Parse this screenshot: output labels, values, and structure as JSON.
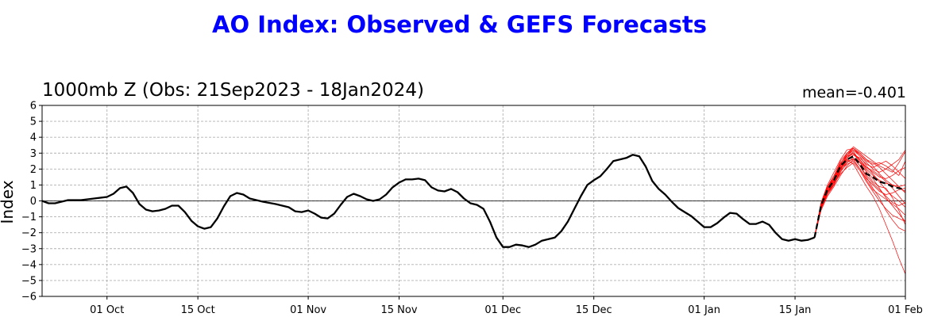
{
  "chart_data": {
    "type": "line",
    "title": "AO Index: Observed & GEFS Forecasts",
    "subtitle": "1000mb Z (Obs: 21Sep2023 - 18Jan2024)",
    "mean_label": "mean=-0.401",
    "xlabel": "",
    "ylabel": "Index",
    "x_range": [
      "2023-09-21",
      "2024-02-01"
    ],
    "ylim": [
      -6,
      6
    ],
    "x_ticks": [
      {
        "date": "2023-10-01",
        "label": "01 Oct"
      },
      {
        "date": "2023-10-15",
        "label": "15 Oct"
      },
      {
        "date": "2023-11-01",
        "label": "01 Nov"
      },
      {
        "date": "2023-11-15",
        "label": "15 Nov"
      },
      {
        "date": "2023-12-01",
        "label": "01 Dec"
      },
      {
        "date": "2023-12-15",
        "label": "15 Dec"
      },
      {
        "date": "2024-01-01",
        "label": "01 Jan"
      },
      {
        "date": "2024-01-15",
        "label": "15 Jan"
      },
      {
        "date": "2024-02-01",
        "label": "01 Feb"
      }
    ],
    "y_ticks": [
      -6,
      -5,
      -4,
      -3,
      -2,
      -1,
      0,
      1,
      2,
      3,
      4,
      5,
      6
    ],
    "grid": true,
    "zero_line": true,
    "colors": {
      "observed": "#000000",
      "ensemble": "#ff0000",
      "ensemble_mean": "#000000",
      "title": "#0000ff"
    },
    "series": [
      {
        "role": "observed",
        "style": "solid",
        "x": [
          "2023-09-21",
          "2023-09-22",
          "2023-09-23",
          "2023-09-25",
          "2023-09-27",
          "2023-09-29",
          "2023-10-01",
          "2023-10-02",
          "2023-10-03",
          "2023-10-04",
          "2023-10-05",
          "2023-10-06",
          "2023-10-07",
          "2023-10-08",
          "2023-10-09",
          "2023-10-10",
          "2023-10-11",
          "2023-10-12",
          "2023-10-13",
          "2023-10-14",
          "2023-10-15",
          "2023-10-16",
          "2023-10-17",
          "2023-10-18",
          "2023-10-19",
          "2023-10-20",
          "2023-10-21",
          "2023-10-22",
          "2023-10-23",
          "2023-10-25",
          "2023-10-27",
          "2023-10-28",
          "2023-10-29",
          "2023-10-30",
          "2023-10-31",
          "2023-11-01",
          "2023-11-02",
          "2023-11-03",
          "2023-11-04",
          "2023-11-05",
          "2023-11-06",
          "2023-11-07",
          "2023-11-08",
          "2023-11-09",
          "2023-11-10",
          "2023-11-11",
          "2023-11-12",
          "2023-11-13",
          "2023-11-14",
          "2023-11-15",
          "2023-11-16",
          "2023-11-17",
          "2023-11-18",
          "2023-11-19",
          "2023-11-20",
          "2023-11-21",
          "2023-11-22",
          "2023-11-23",
          "2023-11-24",
          "2023-11-25",
          "2023-11-26",
          "2023-11-27",
          "2023-11-28",
          "2023-11-29",
          "2023-11-30",
          "2023-12-01",
          "2023-12-02",
          "2023-12-03",
          "2023-12-04",
          "2023-12-05",
          "2023-12-06",
          "2023-12-07",
          "2023-12-08",
          "2023-12-09",
          "2023-12-10",
          "2023-12-11",
          "2023-12-12",
          "2023-12-13",
          "2023-12-14",
          "2023-12-15",
          "2023-12-16",
          "2023-12-17",
          "2023-12-18",
          "2023-12-19",
          "2023-12-20",
          "2023-12-21",
          "2023-12-22",
          "2023-12-23",
          "2023-12-24",
          "2023-12-25",
          "2023-12-26",
          "2023-12-27",
          "2023-12-28",
          "2023-12-29",
          "2023-12-30",
          "2023-12-31",
          "2024-01-01",
          "2024-01-02",
          "2024-01-03",
          "2024-01-04",
          "2024-01-05",
          "2024-01-06",
          "2024-01-07",
          "2024-01-08",
          "2024-01-09",
          "2024-01-10",
          "2024-01-11",
          "2024-01-12",
          "2024-01-13",
          "2024-01-14",
          "2024-01-15",
          "2024-01-16",
          "2024-01-17",
          "2024-01-18"
        ],
        "y": [
          0.0,
          -0.15,
          -0.15,
          0.05,
          0.05,
          0.15,
          0.25,
          0.45,
          0.8,
          0.9,
          0.5,
          -0.2,
          -0.55,
          -0.65,
          -0.6,
          -0.5,
          -0.3,
          -0.3,
          -0.7,
          -1.25,
          -1.6,
          -1.75,
          -1.65,
          -1.1,
          -0.35,
          0.3,
          0.5,
          0.4,
          0.15,
          -0.05,
          -0.2,
          -0.3,
          -0.4,
          -0.65,
          -0.7,
          -0.6,
          -0.8,
          -1.05,
          -1.1,
          -0.8,
          -0.25,
          0.25,
          0.45,
          0.3,
          0.1,
          0.0,
          0.1,
          0.4,
          0.85,
          1.15,
          1.35,
          1.35,
          1.4,
          1.3,
          0.85,
          0.65,
          0.6,
          0.75,
          0.55,
          0.15,
          -0.15,
          -0.25,
          -0.5,
          -1.3,
          -2.3,
          -2.9,
          -2.9,
          -2.75,
          -2.8,
          -2.9,
          -2.75,
          -2.5,
          -2.4,
          -2.3,
          -1.9,
          -1.3,
          -0.5,
          0.3,
          1.0,
          1.3,
          1.55,
          2.0,
          2.5,
          2.6,
          2.7,
          2.9,
          2.8,
          2.15,
          1.25,
          0.75,
          0.4,
          -0.05,
          -0.45,
          -0.7,
          -0.95,
          -1.3,
          -1.65,
          -1.65,
          -1.4,
          -1.05,
          -0.75,
          -0.8,
          -1.15,
          -1.45,
          -1.45,
          -1.3,
          -1.5,
          -2.0,
          -2.4,
          -2.5,
          -2.4,
          -2.5,
          -2.45,
          -2.3
        ]
      },
      {
        "role": "ensemble_mean",
        "style": "dashed",
        "x": [
          "2024-01-18",
          "2024-01-19",
          "2024-01-20",
          "2024-01-21",
          "2024-01-22",
          "2024-01-23",
          "2024-01-24",
          "2024-01-25",
          "2024-01-26",
          "2024-01-27",
          "2024-01-28",
          "2024-01-29",
          "2024-01-30",
          "2024-01-31",
          "2024-02-01"
        ],
        "y": [
          -2.3,
          -0.3,
          0.7,
          1.3,
          2.2,
          2.6,
          2.8,
          2.3,
          1.7,
          1.5,
          1.2,
          1.1,
          0.9,
          0.8,
          0.7
        ]
      }
    ],
    "ensemble_members": [
      [
        -2.3,
        -0.4,
        0.6,
        1.2,
        2.0,
        2.9,
        3.3,
        3.0,
        2.6,
        2.2,
        1.7,
        1.3,
        1.0,
        0.8,
        0.6
      ],
      [
        -2.3,
        -0.2,
        0.9,
        1.6,
        2.5,
        3.0,
        3.4,
        3.1,
        2.8,
        2.5,
        2.2,
        2.0,
        1.8,
        2.4,
        3.1
      ],
      [
        -2.3,
        -0.5,
        0.4,
        1.0,
        1.8,
        2.4,
        2.7,
        2.2,
        1.5,
        0.8,
        0.2,
        -0.6,
        -1.2,
        -1.7,
        -1.9
      ],
      [
        -2.3,
        -0.3,
        0.7,
        1.3,
        2.3,
        2.6,
        2.3,
        1.6,
        0.9,
        0.3,
        -0.5,
        -1.5,
        -2.5,
        -3.6,
        -4.6
      ],
      [
        -2.3,
        -0.1,
        1.0,
        1.8,
        2.6,
        3.2,
        3.3,
        2.9,
        2.4,
        2.0,
        1.8,
        2.0,
        2.3,
        2.6,
        3.2
      ],
      [
        -2.3,
        -0.4,
        0.5,
        1.1,
        1.9,
        2.3,
        2.5,
        2.0,
        1.3,
        0.7,
        0.4,
        0.1,
        -0.2,
        -0.5,
        -0.9
      ],
      [
        -2.3,
        -0.2,
        0.8,
        1.5,
        2.4,
        2.8,
        3.0,
        2.6,
        2.0,
        1.6,
        1.3,
        1.1,
        1.0,
        0.9,
        1.0
      ],
      [
        -2.3,
        -0.6,
        0.3,
        0.9,
        1.6,
        2.2,
        2.6,
        2.4,
        2.1,
        1.9,
        1.6,
        1.2,
        0.8,
        0.3,
        -0.2
      ],
      [
        -2.3,
        -0.3,
        0.6,
        1.2,
        2.0,
        2.5,
        2.9,
        2.7,
        2.3,
        2.1,
        2.3,
        2.5,
        2.2,
        1.8,
        1.4
      ],
      [
        -2.3,
        -0.3,
        0.7,
        1.4,
        2.2,
        2.7,
        3.1,
        2.5,
        1.9,
        1.4,
        0.8,
        0.2,
        -0.3,
        -0.8,
        -1.3
      ],
      [
        -2.3,
        -0.2,
        0.9,
        1.5,
        2.3,
        2.9,
        3.2,
        2.8,
        2.2,
        1.7,
        1.2,
        0.7,
        0.3,
        0.0,
        -0.4
      ],
      [
        -2.3,
        -0.4,
        0.5,
        1.1,
        1.7,
        2.1,
        2.4,
        1.9,
        1.2,
        0.6,
        0.0,
        -0.5,
        -0.9,
        -1.1,
        -1.3
      ],
      [
        -2.3,
        -0.5,
        0.5,
        1.0,
        1.9,
        2.6,
        2.9,
        2.6,
        2.1,
        1.8,
        1.5,
        1.4,
        1.6,
        1.9,
        2.1
      ],
      [
        -2.3,
        -0.2,
        0.8,
        1.4,
        2.3,
        3.0,
        3.3,
        3.0,
        2.6,
        2.4,
        2.1,
        1.7,
        1.3,
        0.9,
        0.5
      ],
      [
        -2.3,
        -0.3,
        0.6,
        1.3,
        2.1,
        2.5,
        2.6,
        2.0,
        1.4,
        1.0,
        0.6,
        0.4,
        0.5,
        0.7,
        0.8
      ],
      [
        -2.3,
        -0.4,
        0.6,
        1.2,
        2.1,
        2.7,
        3.0,
        2.4,
        1.8,
        1.2,
        0.9,
        0.8,
        0.2,
        -0.6,
        -1.5
      ],
      [
        -2.3,
        -0.3,
        0.7,
        1.4,
        2.2,
        2.8,
        3.2,
        2.9,
        2.5,
        2.3,
        2.4,
        2.2,
        1.9,
        1.6,
        2.5
      ],
      [
        -2.3,
        -0.4,
        0.5,
        1.2,
        2.0,
        2.4,
        2.7,
        2.2,
        1.6,
        1.1,
        0.7,
        0.3,
        -0.1,
        -0.3,
        -0.1
      ]
    ]
  }
}
